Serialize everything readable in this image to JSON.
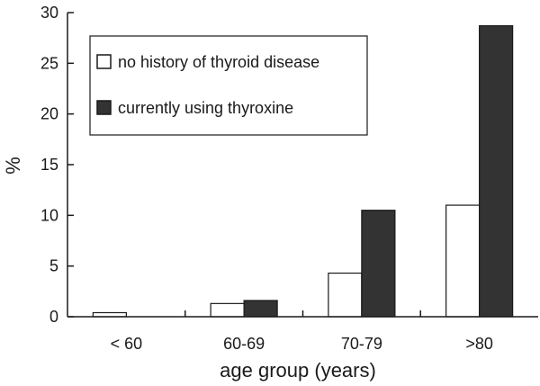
{
  "chart_data": {
    "type": "bar",
    "categories": [
      "< 60",
      "60-69",
      "70-79",
      ">80"
    ],
    "series": [
      {
        "name": "no history of thyroid disease",
        "values": [
          0.4,
          1.3,
          4.3,
          11.0
        ],
        "color": "#ffffff"
      },
      {
        "name": "currently using thyroxine",
        "values": [
          0.0,
          1.6,
          10.5,
          28.7
        ],
        "color": "#333333"
      }
    ],
    "xlabel": "age group (years)",
    "ylabel": "%",
    "ylim": [
      0,
      30
    ],
    "yticks": [
      0,
      5,
      10,
      15,
      20,
      25,
      30
    ],
    "legend_position": "top-left",
    "grid": false
  }
}
